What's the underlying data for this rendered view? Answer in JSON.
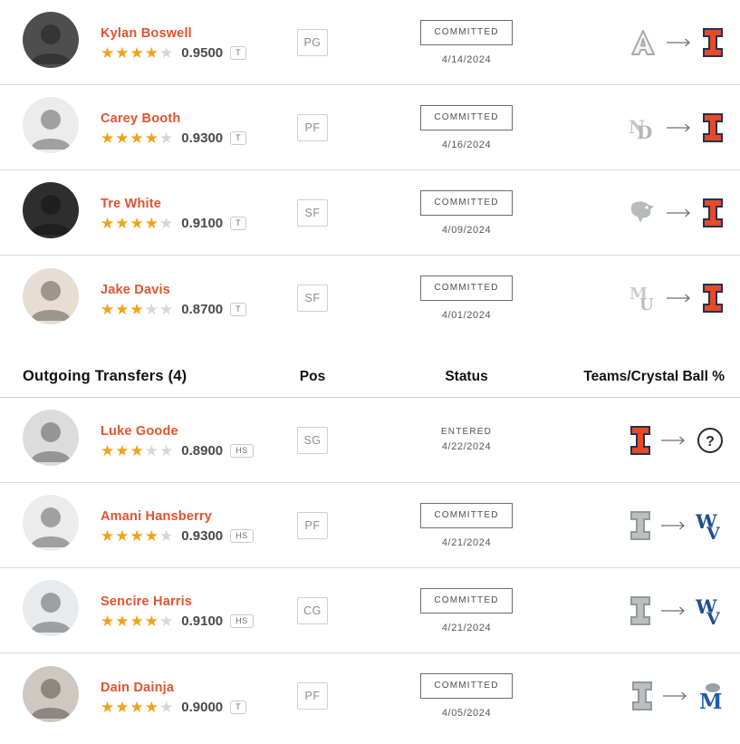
{
  "colors": {
    "name_link": "#e8512e",
    "star_gold": "#f0a21a",
    "star_empty": "#d6d6d6",
    "illinois_orange": "#e84a27",
    "illinois_navy": "#203354",
    "wvu_blue": "#1d4f91",
    "memphis_blue": "#1b5faa",
    "gray_logo": "#bcbfc1"
  },
  "header": {
    "title": "Outgoing Transfers (4)",
    "pos": "Pos",
    "status": "Status",
    "teams": "Teams/Crystal Ball %"
  },
  "incoming": [
    {
      "name": "Kylan Boswell",
      "stars": 4,
      "rating": "0.9500",
      "badge": "T",
      "pos": "PG",
      "status": "COMMITTED",
      "status_boxed": true,
      "date": "4/14/2024",
      "from_team": "arizona",
      "to_team": "illinois",
      "avatar_bg": "#4e4e4e"
    },
    {
      "name": "Carey Booth",
      "stars": 4,
      "rating": "0.9300",
      "badge": "T",
      "pos": "PF",
      "status": "COMMITTED",
      "status_boxed": true,
      "date": "4/16/2024",
      "from_team": "notredame",
      "to_team": "illinois",
      "avatar_bg": "#ececec"
    },
    {
      "name": "Tre White",
      "stars": 4,
      "rating": "0.9100",
      "badge": "T",
      "pos": "SF",
      "status": "COMMITTED",
      "status_boxed": true,
      "date": "4/09/2024",
      "from_team": "louisville",
      "to_team": "illinois",
      "avatar_bg": "#2e2e2e"
    },
    {
      "name": "Jake Davis",
      "stars": 3,
      "rating": "0.8700",
      "badge": "T",
      "pos": "SF",
      "status": "COMMITTED",
      "status_boxed": true,
      "date": "4/01/2024",
      "from_team": "mercer",
      "to_team": "illinois",
      "avatar_bg": "#e7ddd3"
    }
  ],
  "outgoing": [
    {
      "name": "Luke Goode",
      "stars": 3,
      "rating": "0.8900",
      "badge": "HS",
      "pos": "SG",
      "status": "ENTERED",
      "status_boxed": false,
      "date": "4/22/2024",
      "from_team": "illinois",
      "to_team": "question",
      "avatar_bg": "#dcdcdc"
    },
    {
      "name": "Amani Hansberry",
      "stars": 4,
      "rating": "0.9300",
      "badge": "HS",
      "pos": "PF",
      "status": "COMMITTED",
      "status_boxed": true,
      "date": "4/21/2024",
      "from_team": "illinois_gray",
      "to_team": "wvu",
      "avatar_bg": "#ececec"
    },
    {
      "name": "Sencire Harris",
      "stars": 4,
      "rating": "0.9100",
      "badge": "HS",
      "pos": "CG",
      "status": "COMMITTED",
      "status_boxed": true,
      "date": "4/21/2024",
      "from_team": "illinois_gray",
      "to_team": "wvu",
      "avatar_bg": "#e8eaec"
    },
    {
      "name": "Dain Dainja",
      "stars": 4,
      "rating": "0.9000",
      "badge": "T",
      "pos": "PF",
      "status": "COMMITTED",
      "status_boxed": true,
      "date": "4/05/2024",
      "from_team": "illinois_gray",
      "to_team": "memphis",
      "avatar_bg": "#cfc8c0"
    }
  ]
}
